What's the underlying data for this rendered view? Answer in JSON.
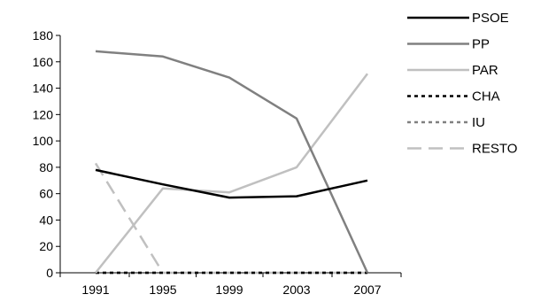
{
  "chart_data": {
    "type": "line",
    "title": "",
    "xlabel": "",
    "ylabel": "",
    "categories": [
      "1991",
      "1995",
      "1999",
      "2003",
      "2007"
    ],
    "ylim": [
      0,
      180
    ],
    "yticks": [
      "0",
      "20",
      "40",
      "60",
      "80",
      "100",
      "120",
      "140",
      "160",
      "180"
    ],
    "grid": false,
    "legend_position": "right",
    "series": [
      {
        "name": "PSOE",
        "values": [
          78,
          67,
          57,
          58,
          70
        ],
        "color": "#000000",
        "dash": "solid"
      },
      {
        "name": "PP",
        "values": [
          168,
          164,
          148,
          117,
          0
        ],
        "color": "#808080",
        "dash": "solid"
      },
      {
        "name": "PAR",
        "values": [
          0,
          64,
          61,
          80,
          151
        ],
        "color": "#c0c0c0",
        "dash": "solid"
      },
      {
        "name": "CHA",
        "values": [
          0,
          0,
          0,
          0,
          0
        ],
        "color": "#000000",
        "dash": "dotted"
      },
      {
        "name": "IU",
        "values": [
          0,
          0,
          0,
          0,
          0
        ],
        "color": "#808080",
        "dash": "dotted"
      },
      {
        "name": "RESTO",
        "values": [
          83,
          0,
          0,
          0,
          0
        ],
        "color": "#c0c0c0",
        "dash": "dashed"
      }
    ]
  }
}
